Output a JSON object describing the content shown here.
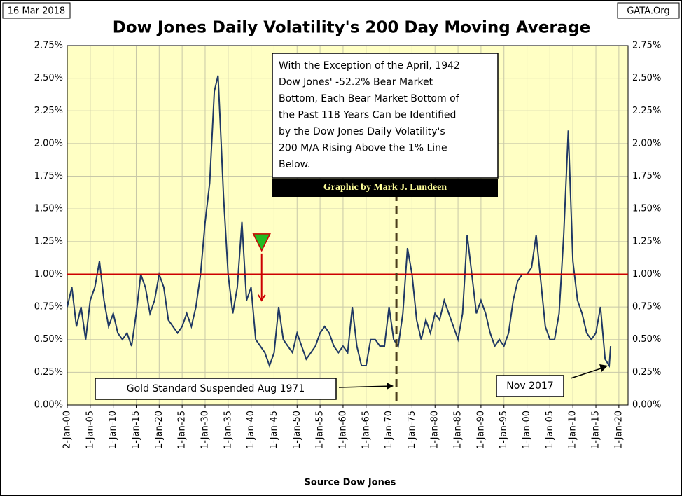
{
  "chart_data": {
    "type": "line",
    "title": "Dow Jones Daily Volatility's 200 Day Moving Average",
    "date_label": "16 Mar 2018",
    "source_label": "GATA.Org",
    "xlabel": "Source Dow Jones",
    "note_lines": [
      "With the Exception of the April, 1942",
      "Dow Jones' -52.2% Bear Market",
      "Bottom, Each Bear Market Bottom of",
      "the Past 118 Years Can be Identified",
      "by the Dow Jones Daily Volatility's",
      "200 M/A Rising Above the 1% Line",
      "Below."
    ],
    "credit": "Graphic by Mark J. Lundeen",
    "vline_label": "Gold Standard Suspended Aug 1971",
    "vline": 1971.6,
    "end_label": "Nov 2017",
    "ref_line": 1,
    "marker": {
      "x": 1942.3,
      "y": 1.18
    },
    "color": "#1f3864",
    "ref_color": "#cc0000",
    "grid": true,
    "xlim": [
      1900,
      2022
    ],
    "ylim": [
      0,
      2.75
    ],
    "yticks": [
      {
        "value": 0,
        "label": "0.00%"
      },
      {
        "value": 0.25,
        "label": "0.25%"
      },
      {
        "value": 0.5,
        "label": "0.50%"
      },
      {
        "value": 0.75,
        "label": "0.75%"
      },
      {
        "value": 1,
        "label": "1.00%"
      },
      {
        "value": 1.25,
        "label": "1.25%"
      },
      {
        "value": 1.5,
        "label": "1.50%"
      },
      {
        "value": 1.75,
        "label": "1.75%"
      },
      {
        "value": 2,
        "label": "2.00%"
      },
      {
        "value": 2.25,
        "label": "2.25%"
      },
      {
        "value": 2.5,
        "label": "2.50%"
      },
      {
        "value": 2.75,
        "label": "2.75%"
      }
    ],
    "xticks": [
      {
        "value": 1900,
        "label": "2-Jan-00"
      },
      {
        "value": 1905,
        "label": "1-Jan-05"
      },
      {
        "value": 1910,
        "label": "1-Jan-10"
      },
      {
        "value": 1915,
        "label": "1-Jan-15"
      },
      {
        "value": 1920,
        "label": "1-Jan-20"
      },
      {
        "value": 1925,
        "label": "1-Jan-25"
      },
      {
        "value": 1930,
        "label": "1-Jan-30"
      },
      {
        "value": 1935,
        "label": "1-Jan-35"
      },
      {
        "value": 1940,
        "label": "1-Jan-40"
      },
      {
        "value": 1945,
        "label": "1-Jan-45"
      },
      {
        "value": 1950,
        "label": "1-Jan-50"
      },
      {
        "value": 1955,
        "label": "1-Jan-55"
      },
      {
        "value": 1960,
        "label": "1-Jan-60"
      },
      {
        "value": 1965,
        "label": "1-Jan-65"
      },
      {
        "value": 1970,
        "label": "1-Jan-70"
      },
      {
        "value": 1975,
        "label": "1-Jan-75"
      },
      {
        "value": 1980,
        "label": "1-Jan-80"
      },
      {
        "value": 1985,
        "label": "1-Jan-85"
      },
      {
        "value": 1990,
        "label": "1-Jan-90"
      },
      {
        "value": 1995,
        "label": "1-Jan-95"
      },
      {
        "value": 2000,
        "label": "1-Jan-00"
      },
      {
        "value": 2005,
        "label": "1-Jan-05"
      },
      {
        "value": 2010,
        "label": "1-Jan-10"
      },
      {
        "value": 2015,
        "label": "1-Jan-15"
      },
      {
        "value": 2020,
        "label": "1-Jan-20"
      }
    ],
    "x": [
      1900,
      1901,
      1902,
      1903,
      1904,
      1905,
      1906,
      1907,
      1908,
      1909,
      1910,
      1911,
      1912,
      1913,
      1914,
      1915,
      1916,
      1917,
      1918,
      1919,
      1920,
      1921,
      1922,
      1923,
      1924,
      1925,
      1926,
      1927,
      1928,
      1929,
      1930,
      1931,
      1932,
      1932.8,
      1933.5,
      1934,
      1935,
      1936,
      1937,
      1938,
      1939,
      1940,
      1941,
      1942,
      1943,
      1944,
      1945,
      1946,
      1947,
      1948,
      1949,
      1950,
      1951,
      1952,
      1953,
      1954,
      1955,
      1956,
      1957,
      1958,
      1959,
      1960,
      1961,
      1962,
      1963,
      1964,
      1965,
      1966,
      1967,
      1968,
      1969,
      1970,
      1971,
      1972,
      1973,
      1974,
      1975,
      1976,
      1977,
      1978,
      1979,
      1980,
      1981,
      1982,
      1983,
      1984,
      1985,
      1986,
      1987,
      1988,
      1989,
      1990,
      1991,
      1992,
      1993,
      1994,
      1995,
      1996,
      1997,
      1998,
      1999,
      2000,
      2001,
      2002,
      2003,
      2004,
      2005,
      2006,
      2007,
      2008,
      2009,
      2010,
      2011,
      2012,
      2013,
      2014,
      2015,
      2016,
      2017,
      2017.9,
      2018.2
    ],
    "values": [
      0.75,
      0.9,
      0.6,
      0.75,
      0.5,
      0.8,
      0.9,
      1.1,
      0.8,
      0.6,
      0.7,
      0.55,
      0.5,
      0.55,
      0.45,
      0.7,
      1.0,
      0.9,
      0.7,
      0.8,
      1.0,
      0.9,
      0.65,
      0.6,
      0.55,
      0.6,
      0.7,
      0.6,
      0.75,
      1.0,
      1.4,
      1.7,
      2.4,
      2.52,
      2.0,
      1.6,
      1.0,
      0.7,
      0.9,
      1.4,
      0.8,
      0.9,
      0.5,
      0.45,
      0.4,
      0.3,
      0.4,
      0.75,
      0.5,
      0.45,
      0.4,
      0.55,
      0.45,
      0.35,
      0.4,
      0.45,
      0.55,
      0.6,
      0.55,
      0.45,
      0.4,
      0.45,
      0.4,
      0.75,
      0.45,
      0.3,
      0.3,
      0.5,
      0.5,
      0.45,
      0.45,
      0.75,
      0.5,
      0.45,
      0.7,
      1.2,
      1.0,
      0.65,
      0.5,
      0.65,
      0.55,
      0.7,
      0.65,
      0.8,
      0.7,
      0.6,
      0.5,
      0.7,
      1.3,
      1.0,
      0.7,
      0.8,
      0.7,
      0.55,
      0.45,
      0.5,
      0.45,
      0.55,
      0.8,
      0.95,
      1.0,
      1.0,
      1.05,
      1.3,
      0.95,
      0.6,
      0.5,
      0.5,
      0.7,
      1.3,
      2.1,
      1.1,
      0.8,
      0.7,
      0.55,
      0.5,
      0.55,
      0.75,
      0.35,
      0.3,
      0.45
    ]
  }
}
